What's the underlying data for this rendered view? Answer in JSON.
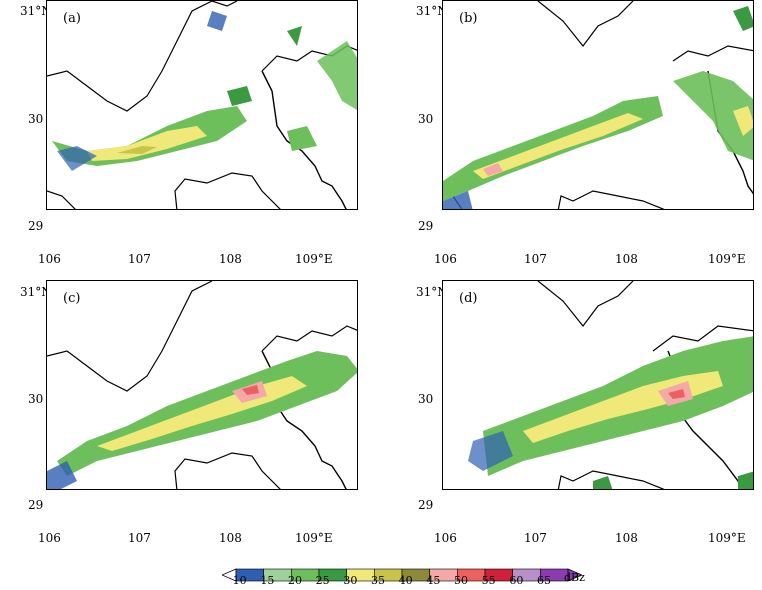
{
  "panels": [
    {
      "label": "(a)",
      "lat_top": "31°N",
      "lat_mid": "30",
      "lat_bot": "29",
      "lon": [
        "106",
        "107",
        "108",
        "109°E"
      ]
    },
    {
      "label": "(b)",
      "lat_top": "31°N",
      "lat_mid": "30",
      "lat_bot": "29",
      "lon": [
        "106",
        "107",
        "108",
        "109°E"
      ]
    },
    {
      "label": "(c)",
      "lat_top": "31°N",
      "lat_mid": "30",
      "lat_bot": "29",
      "lon": [
        "106",
        "107",
        "108",
        "109°E"
      ]
    },
    {
      "label": "(d)",
      "lat_top": "31°N",
      "lat_mid": "30",
      "lat_bot": "29",
      "lon": [
        "106",
        "107",
        "108",
        "109°E"
      ]
    }
  ],
  "colorbar": {
    "ticks": [
      "10",
      "15",
      "20",
      "25",
      "30",
      "35",
      "40",
      "45",
      "50",
      "55",
      "60",
      "65"
    ],
    "unit": "dBz",
    "colors": [
      "#2f5fb3",
      "#9fd29a",
      "#6cbf5a",
      "#3a9a42",
      "#f0e878",
      "#c8c44a",
      "#8c8a3a",
      "#f4a8a8",
      "#ec6060",
      "#d0203a",
      "#b890c8",
      "#8c3cb0"
    ]
  }
}
